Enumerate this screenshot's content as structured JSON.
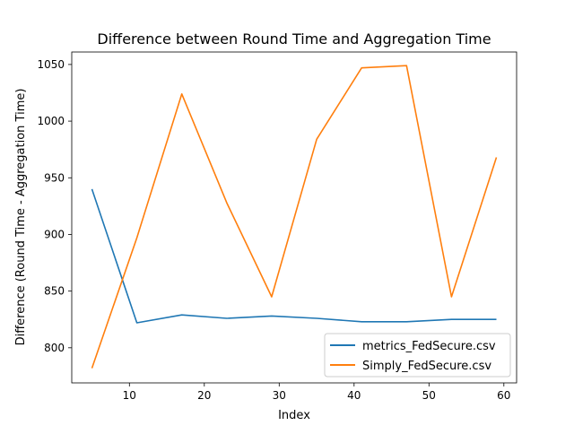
{
  "chart_data": {
    "type": "line",
    "title": "Difference between Round Time and Aggregation Time",
    "xlabel": "Index",
    "ylabel": "Difference (Round Time - Aggregation Time)",
    "xlim": [
      2.3,
      61.7
    ],
    "ylim": [
      769,
      1061
    ],
    "xticks": [
      10,
      20,
      30,
      40,
      50,
      60
    ],
    "yticks": [
      800,
      850,
      900,
      950,
      1000,
      1050
    ],
    "grid": false,
    "legend_position": "lower-right",
    "series": [
      {
        "name": "metrics_FedSecure.csv",
        "color": "#1f77b4",
        "x": [
          5,
          11,
          17,
          23,
          29,
          35,
          41,
          47,
          53,
          59
        ],
        "y": [
          940,
          822,
          829,
          826,
          828,
          826,
          823,
          823,
          825,
          825
        ]
      },
      {
        "name": "Simply_FedSecure.csv",
        "color": "#ff7f0e",
        "x": [
          5,
          11,
          17,
          23,
          29,
          35,
          41,
          47,
          53,
          59
        ],
        "y": [
          782,
          897,
          1024,
          928,
          845,
          984,
          1047,
          1049,
          845,
          968
        ]
      }
    ]
  }
}
